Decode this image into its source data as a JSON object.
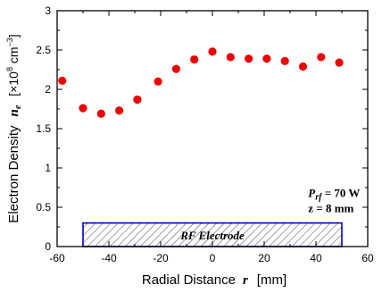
{
  "chart_data": {
    "type": "scatter",
    "xlabel": "Radial Distance",
    "xlabel_var": "r",
    "xlabel_unit": "[mm]",
    "ylabel": "Electron Density",
    "ylabel_var": "n",
    "ylabel_var_sub": "e",
    "ylabel_unit_pre": "[×10",
    "ylabel_unit_exp": "8",
    "ylabel_unit_mid": " cm",
    "ylabel_unit_exp2": "−3",
    "ylabel_unit_post": "]",
    "xlim": [
      -60,
      60
    ],
    "ylim": [
      0,
      3
    ],
    "xticks": [
      -60,
      -40,
      -20,
      0,
      20,
      40,
      60
    ],
    "yticks": [
      0,
      0.5,
      1,
      1.5,
      2,
      2.5,
      3
    ],
    "xtick_labels": [
      "-60",
      "-40",
      "-20",
      "0",
      "20",
      "40",
      "60"
    ],
    "ytick_labels": [
      "0",
      "0.5",
      "1",
      "1.5",
      "2",
      "2.5",
      "3"
    ],
    "marker_color": "#ee0000",
    "series": [
      {
        "x": [
          -58,
          -50,
          -43,
          -36,
          -29,
          -21,
          -14,
          -7,
          0,
          7,
          14,
          21,
          28,
          35,
          42,
          49
        ],
        "y": [
          2.11,
          1.76,
          1.69,
          1.73,
          1.87,
          2.1,
          2.26,
          2.38,
          2.48,
          2.41,
          2.39,
          2.39,
          2.36,
          2.29,
          2.41,
          2.34
        ]
      }
    ],
    "electrode": {
      "label": "RF Electrode",
      "x_range": [
        -50,
        50
      ],
      "y_range": [
        0,
        0.3
      ],
      "color": "#0000cc"
    },
    "annotation": {
      "p_symbol": "P",
      "p_sub": "rf",
      "p_value": " = 70 W",
      "z_line": "z = 8 mm"
    }
  }
}
